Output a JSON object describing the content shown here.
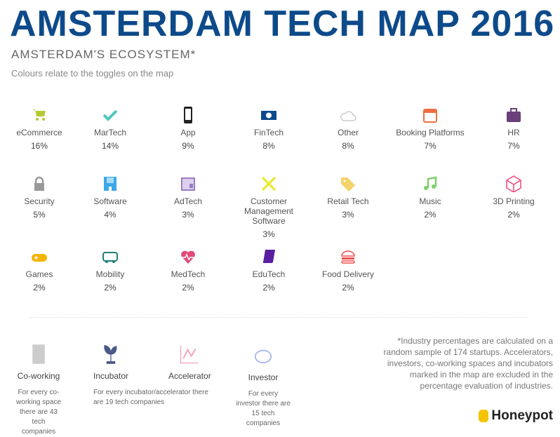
{
  "title": "AMSTERDAM TECH MAP 2016",
  "subtitle": "AMSTERDAM'S ECOSYSTEM*",
  "note": "Colours relate to the toggles on the map",
  "industries": [
    {
      "label": "eCommerce",
      "pct": "16%",
      "icon": "cart-icon",
      "color": "#b5c933"
    },
    {
      "label": "MarTech",
      "pct": "14%",
      "icon": "check-icon",
      "color": "#4fc8c0"
    },
    {
      "label": "App",
      "pct": "9%",
      "icon": "phone-icon",
      "color": "#222222"
    },
    {
      "label": "FinTech",
      "pct": "8%",
      "icon": "banknote-icon",
      "color": "#0d4a8a"
    },
    {
      "label": "Other",
      "pct": "8%",
      "icon": "cloud-icon",
      "color": "#cccccc"
    },
    {
      "label": "Booking Platforms",
      "pct": "7%",
      "icon": "calendar-icon",
      "color": "#ee7042"
    },
    {
      "label": "HR",
      "pct": "7%",
      "icon": "briefcase-icon",
      "color": "#6a3f7a"
    },
    {
      "label": "Security",
      "pct": "5%",
      "icon": "lock-icon",
      "color": "#999999"
    },
    {
      "label": "Software",
      "pct": "4%",
      "icon": "floppy-icon",
      "color": "#3ca8e8"
    },
    {
      "label": "AdTech",
      "pct": "3%",
      "icon": "newspaper-icon",
      "color": "#9b7bc0"
    },
    {
      "label": "Customer Management Software",
      "pct": "3%",
      "icon": "tools-icon",
      "color": "#eaea3a"
    },
    {
      "label": "Retail Tech",
      "pct": "3%",
      "icon": "tag-icon",
      "color": "#f3d36a"
    },
    {
      "label": "Music",
      "pct": "2%",
      "icon": "music-icon",
      "color": "#7ecf6a"
    },
    {
      "label": "3D Printing",
      "pct": "2%",
      "icon": "cube-icon",
      "color": "#f0457a"
    },
    {
      "label": "Games",
      "pct": "2%",
      "icon": "gamepad-icon",
      "color": "#f5b400"
    },
    {
      "label": "Mobility",
      "pct": "2%",
      "icon": "bus-icon",
      "color": "#1e7e74"
    },
    {
      "label": "MedTech",
      "pct": "2%",
      "icon": "heart-pulse-icon",
      "color": "#e04a78"
    },
    {
      "label": "EduTech",
      "pct": "2%",
      "icon": "book-icon",
      "color": "#5a1fa0"
    },
    {
      "label": "Food Delivery",
      "pct": "2%",
      "icon": "burger-icon",
      "color": "#f05050"
    }
  ],
  "bottom": [
    {
      "label": "Co-working",
      "desc": "For every co-working space there are 43 tech companies",
      "icon": "building-icon",
      "color": "#cccccc"
    },
    {
      "label": "Incubator",
      "desc": "For every incubator/accelerator there are 19 tech companies",
      "icon": "sprout-icon",
      "color": "#4a5a88"
    },
    {
      "label": "Accelerator",
      "desc": "",
      "icon": "chart-line-icon",
      "color": "#f4a0b8"
    },
    {
      "label": "Investor",
      "desc": "For every investor there are 15 tech companies",
      "icon": "piggy-bank-icon",
      "color": "#a8b8f0"
    }
  ],
  "disclaimer": "*Industry percentages are calculated on a random sample of 174 startups. Accelerators, investors, co-working spaces and incubators marked in the map are excluded in the percentage evaluation of industries.",
  "brand": "Honeypot"
}
